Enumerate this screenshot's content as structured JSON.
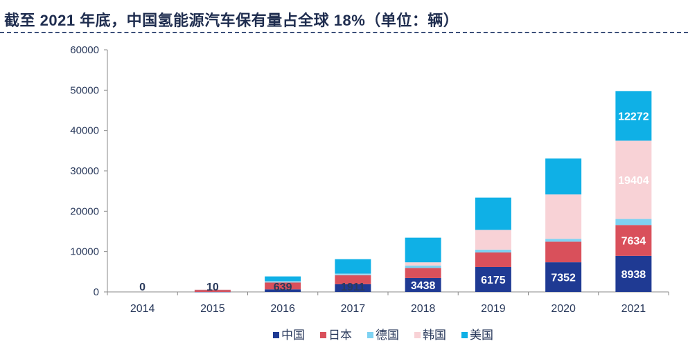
{
  "title": "截至 2021 年底，中国氢能源汽车保有量占全球 18%（单位：辆）",
  "chart_data": {
    "type": "bar",
    "stacked": true,
    "categories": [
      "2014",
      "2015",
      "2016",
      "2017",
      "2018",
      "2019",
      "2020",
      "2021"
    ],
    "series": [
      {
        "name": "中国",
        "color": "#1f3a93",
        "values": [
          0,
          10,
          639,
          1911,
          3438,
          6175,
          7352,
          8938
        ]
      },
      {
        "name": "日本",
        "color": "#d9505b",
        "values": [
          0,
          500,
          1700,
          2200,
          2500,
          3600,
          5100,
          7634
        ]
      },
      {
        "name": "德国",
        "color": "#7ed2f2",
        "values": [
          0,
          50,
          200,
          300,
          600,
          700,
          700,
          1500
        ]
      },
      {
        "name": "韩国",
        "color": "#f8d2d6",
        "values": [
          0,
          50,
          100,
          100,
          800,
          4900,
          11000,
          19404
        ]
      },
      {
        "name": "美国",
        "color": "#0fb0e6",
        "values": [
          0,
          0,
          1200,
          3600,
          6100,
          8000,
          8900,
          12272
        ]
      }
    ],
    "data_labels": [
      {
        "series": "中国",
        "category": "2014",
        "text": "0"
      },
      {
        "series": "中国",
        "category": "2015",
        "text": "10"
      },
      {
        "series": "中国",
        "category": "2016",
        "text": "639"
      },
      {
        "series": "中国",
        "category": "2017",
        "text": "1911"
      },
      {
        "series": "中国",
        "category": "2018",
        "text": "3438"
      },
      {
        "series": "中国",
        "category": "2019",
        "text": "6175"
      },
      {
        "series": "中国",
        "category": "2020",
        "text": "7352"
      },
      {
        "series": "中国",
        "category": "2021",
        "text": "8938"
      },
      {
        "series": "日本",
        "category": "2021",
        "text": "7634"
      },
      {
        "series": "韩国",
        "category": "2021",
        "text": "19404"
      },
      {
        "series": "美国",
        "category": "2021",
        "text": "12272"
      }
    ],
    "ylim": [
      0,
      60000
    ],
    "yticks": [
      "0",
      "10000",
      "20000",
      "30000",
      "40000",
      "50000",
      "60000"
    ],
    "xlabel": "",
    "ylabel": "",
    "grid": false,
    "legend_position": "bottom"
  }
}
